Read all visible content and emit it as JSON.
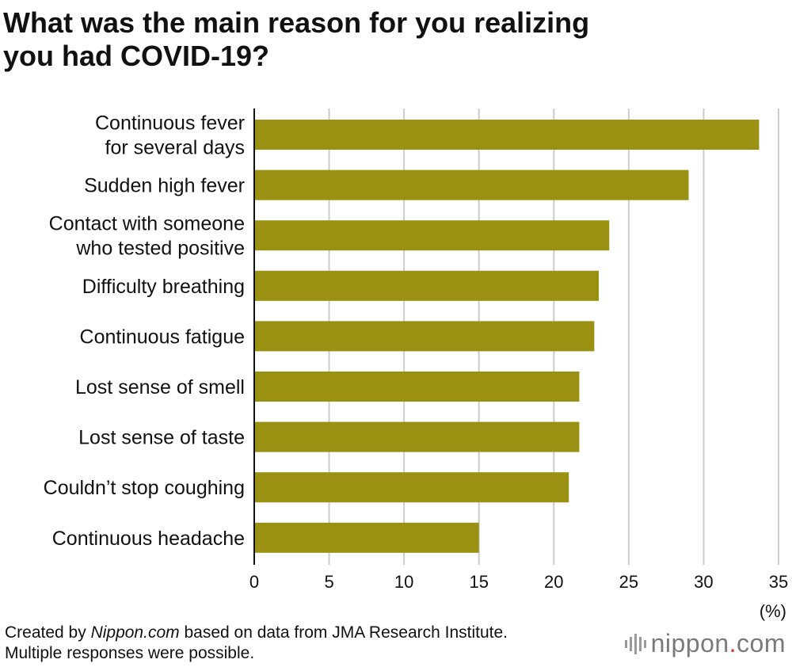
{
  "title_lines": [
    "What was the main reason for you realizing",
    "you had COVID-19?"
  ],
  "chart_data": {
    "type": "bar",
    "orientation": "horizontal",
    "categories": [
      [
        "Continuous fever",
        "for several days"
      ],
      [
        "Sudden high fever"
      ],
      [
        "Contact with someone",
        "who tested positive"
      ],
      [
        "Difficulty breathing"
      ],
      [
        "Continuous fatigue"
      ],
      [
        "Lost sense of smell"
      ],
      [
        "Lost sense of taste"
      ],
      [
        "Couldn’t stop coughing"
      ],
      [
        "Continuous headache"
      ]
    ],
    "values": [
      33.7,
      29.0,
      23.7,
      23.0,
      22.7,
      21.7,
      21.7,
      21.0,
      15.0
    ],
    "xlim": [
      0,
      35
    ],
    "xticks": [
      0,
      5,
      10,
      15,
      20,
      25,
      30,
      35
    ],
    "xlabel": "(%)",
    "grid": true,
    "bar_color": "#9a9012",
    "grid_color": "#cccccc"
  },
  "footer": {
    "prefix": "Created by ",
    "source_name": "Nippon.com",
    "suffix": " based on data from JMA Research Institute. Multiple responses were possible."
  },
  "logo": {
    "icon": "nippon-bars-icon",
    "name": "nippon",
    "dot": ".",
    "tld": "com",
    "dot_color": "#d0312d"
  }
}
